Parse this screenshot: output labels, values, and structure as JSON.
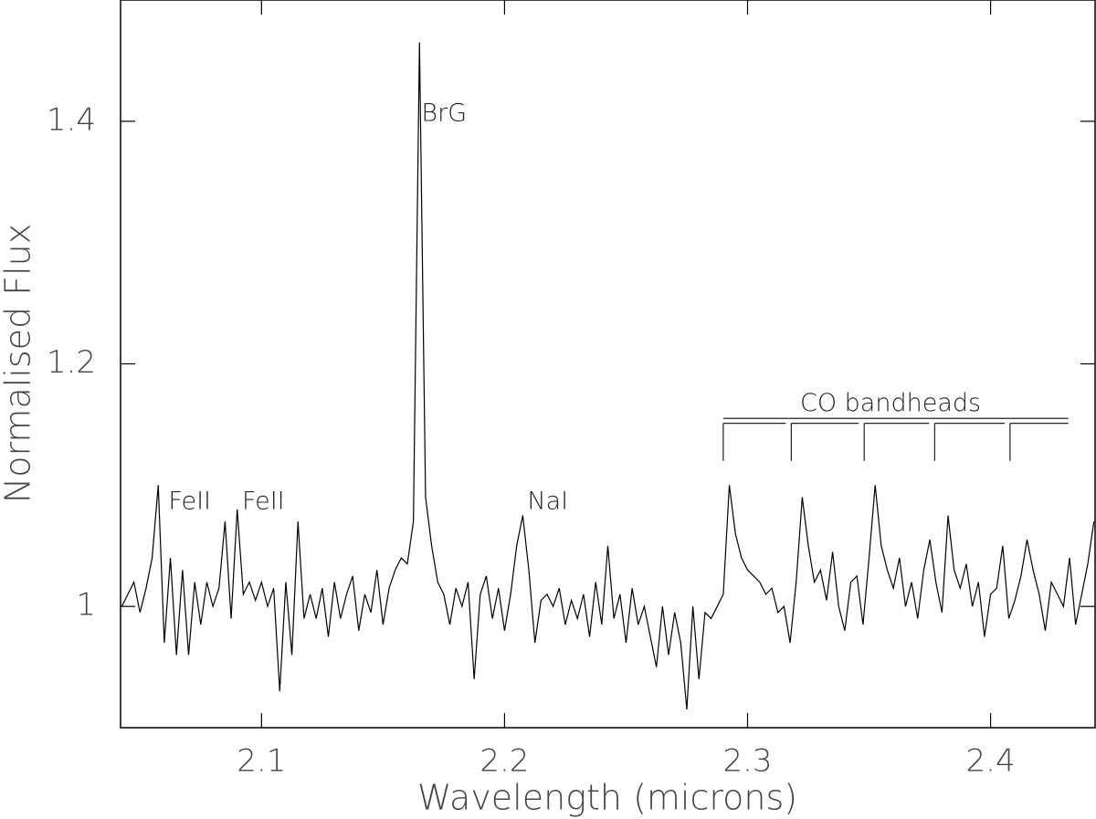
{
  "chart_data": {
    "type": "line",
    "xlabel": "Wavelength (microns)",
    "ylabel": "Normalised Flux",
    "xlim": [
      2.042,
      2.443
    ],
    "ylim": [
      0.9,
      1.5
    ],
    "xticks": [
      2.1,
      2.2,
      2.3,
      2.4
    ],
    "yticks": [
      1,
      1.2,
      1.4
    ],
    "series": [
      {
        "color": "#000000",
        "x": [
          2.0425,
          2.045,
          2.0475,
          2.05,
          2.0525,
          2.055,
          2.0575,
          2.06,
          2.0625,
          2.065,
          2.0675,
          2.07,
          2.0725,
          2.075,
          2.0775,
          2.08,
          2.0825,
          2.085,
          2.0875,
          2.09,
          2.0925,
          2.095,
          2.0975,
          2.1,
          2.1025,
          2.105,
          2.1075,
          2.11,
          2.1125,
          2.115,
          2.1175,
          2.12,
          2.1225,
          2.125,
          2.1275,
          2.13,
          2.1325,
          2.135,
          2.1375,
          2.14,
          2.1425,
          2.145,
          2.1475,
          2.15,
          2.1525,
          2.155,
          2.1575,
          2.16,
          2.1625,
          2.165,
          2.1675,
          2.17,
          2.1725,
          2.175,
          2.1775,
          2.18,
          2.1825,
          2.185,
          2.1875,
          2.19,
          2.1925,
          2.195,
          2.1975,
          2.2,
          2.2025,
          2.205,
          2.2075,
          2.21,
          2.2125,
          2.215,
          2.2175,
          2.22,
          2.2225,
          2.225,
          2.2275,
          2.23,
          2.2325,
          2.235,
          2.2375,
          2.24,
          2.2425,
          2.245,
          2.2475,
          2.25,
          2.2525,
          2.255,
          2.2575,
          2.26,
          2.2625,
          2.265,
          2.2675,
          2.27,
          2.2725,
          2.275,
          2.2775,
          2.28,
          2.2825,
          2.285,
          2.2875,
          2.29,
          2.2925,
          2.295,
          2.2975,
          2.3,
          2.3025,
          2.305,
          2.3075,
          2.31,
          2.3125,
          2.315,
          2.3175,
          2.32,
          2.3225,
          2.325,
          2.3275,
          2.33,
          2.3325,
          2.335,
          2.3375,
          2.34,
          2.3425,
          2.345,
          2.3475,
          2.35,
          2.3525,
          2.355,
          2.3575,
          2.36,
          2.3625,
          2.365,
          2.3675,
          2.37,
          2.3725,
          2.375,
          2.3775,
          2.38,
          2.3825,
          2.385,
          2.3875,
          2.39,
          2.3925,
          2.395,
          2.3975,
          2.4,
          2.4025,
          2.405,
          2.4075,
          2.41,
          2.4125,
          2.415,
          2.4175,
          2.42,
          2.4225,
          2.425,
          2.4275,
          2.43,
          2.4325,
          2.435,
          2.4375,
          2.44,
          2.4425
        ],
        "values": [
          1.0,
          1.01,
          1.02,
          0.995,
          1.015,
          1.04,
          1.1,
          0.97,
          1.04,
          0.96,
          1.03,
          0.96,
          1.02,
          0.985,
          1.02,
          1.0,
          1.015,
          1.07,
          0.99,
          1.08,
          1.01,
          1.02,
          1.005,
          1.02,
          1.0,
          1.015,
          0.93,
          1.02,
          0.96,
          1.07,
          0.99,
          1.01,
          0.99,
          1.015,
          0.975,
          1.02,
          0.99,
          1.01,
          1.025,
          0.98,
          1.01,
          0.995,
          1.03,
          0.985,
          1.015,
          1.03,
          1.04,
          1.035,
          1.07,
          1.465,
          1.09,
          1.05,
          1.02,
          1.01,
          0.985,
          1.015,
          1.0,
          1.02,
          0.94,
          1.01,
          1.025,
          0.99,
          1.015,
          0.98,
          1.01,
          1.05,
          1.075,
          1.03,
          0.97,
          1.005,
          1.01,
          1.0,
          1.015,
          0.985,
          1.005,
          0.99,
          1.01,
          0.975,
          1.02,
          0.985,
          1.05,
          0.99,
          1.01,
          0.97,
          1.015,
          0.985,
          1.0,
          0.975,
          0.95,
          1.0,
          0.96,
          0.995,
          0.97,
          0.915,
          1.0,
          0.94,
          0.995,
          0.99,
          1.0,
          1.01,
          1.1,
          1.06,
          1.04,
          1.03,
          1.025,
          1.02,
          1.01,
          1.015,
          0.995,
          1.0,
          0.97,
          1.02,
          1.09,
          1.05,
          1.02,
          1.03,
          1.005,
          1.045,
          1.0,
          0.98,
          1.02,
          1.025,
          0.985,
          1.04,
          1.1,
          1.05,
          1.03,
          1.015,
          1.04,
          1.0,
          1.02,
          0.99,
          1.03,
          1.055,
          1.02,
          0.995,
          1.075,
          1.03,
          1.015,
          1.035,
          1.0,
          1.02,
          0.975,
          1.01,
          1.015,
          1.05,
          0.99,
          1.005,
          1.025,
          1.055,
          1.03,
          1.01,
          0.98,
          1.02,
          1.01,
          1.0,
          1.04,
          0.985,
          1.01,
          1.035,
          1.07
        ]
      }
    ],
    "annotations": [
      {
        "text": "FeII",
        "x": 2.0617,
        "y": 1.086
      },
      {
        "text": "FeII",
        "x": 2.092,
        "y": 1.086
      },
      {
        "text": "BrG",
        "x": 2.1658,
        "y": 1.406
      },
      {
        "text": "NaI",
        "x": 2.2094,
        "y": 1.086
      },
      {
        "text": "CO bandheads",
        "x": 2.3216,
        "y": 1.167
      }
    ],
    "co_bracket": {
      "x_range": [
        2.29,
        2.432
      ],
      "top": 1.155,
      "heads": [
        2.29,
        2.318,
        2.348,
        2.377,
        2.408
      ],
      "head_top": 1.151,
      "head_bottom": 1.12
    }
  }
}
